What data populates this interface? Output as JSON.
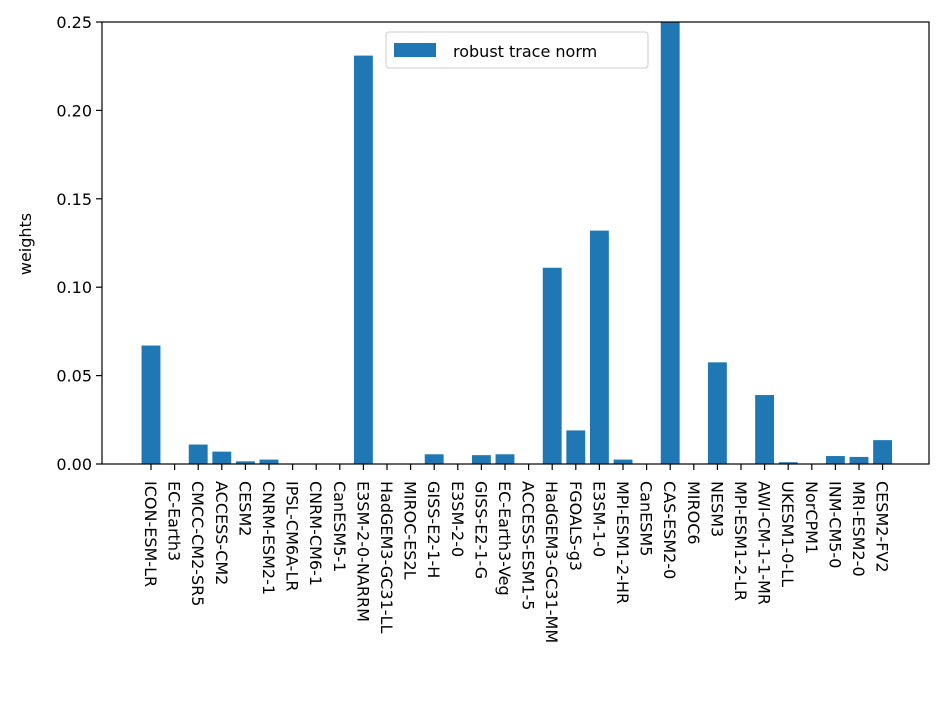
{
  "chart_data": {
    "type": "bar",
    "ylabel": "weights",
    "xlabel": "",
    "ylim": [
      0,
      0.25
    ],
    "yticks": [
      0.0,
      0.05,
      0.1,
      0.15,
      0.2,
      0.25
    ],
    "ytick_labels": [
      "0.00",
      "0.05",
      "0.10",
      "0.15",
      "0.20",
      "0.25"
    ],
    "legend_position": "top-center",
    "bar_color": "#1f77b4",
    "categories": [
      "ICON-ESM-LR",
      "EC-Earth3",
      "CMCC-CM2-SR5",
      "ACCESS-CM2",
      "CESM2",
      "CNRM-ESM2-1",
      "IPSL-CM6A-LR",
      "CNRM-CM6-1",
      "CanESM5-1",
      "E3SM-2-0-NARRM",
      "HadGEM3-GC31-LL",
      "MIROC-ES2L",
      "GISS-E2-1-H",
      "E3SM-2-0",
      "GISS-E2-1-G",
      "EC-Earth3-Veg",
      "ACCESS-ESM1-5",
      "HadGEM3-GC31-MM",
      "FGOALS-g3",
      "E3SM-1-0",
      "MPI-ESM1-2-HR",
      "CanESM5",
      "CAS-ESM2-0",
      "MIROC6",
      "NESM3",
      "MPI-ESM1-2-LR",
      "AWI-CM-1-1-MR",
      "UKESM1-0-LL",
      "NorCPM1",
      "INM-CM5-0",
      "MRI-ESM2-0",
      "CESM2-FV2"
    ],
    "series": [
      {
        "name": "robust trace norm",
        "values": [
          0.067,
          0.0,
          0.011,
          0.007,
          0.0015,
          0.0025,
          0.0,
          0.0,
          0.0,
          0.231,
          0.0,
          0.0,
          0.0055,
          0.0,
          0.005,
          0.0055,
          0.0,
          0.111,
          0.019,
          0.132,
          0.0025,
          0.0,
          0.25,
          0.0,
          0.0575,
          0.0,
          0.039,
          0.001,
          0.0,
          0.0045,
          0.004,
          0.0135
        ]
      }
    ]
  }
}
